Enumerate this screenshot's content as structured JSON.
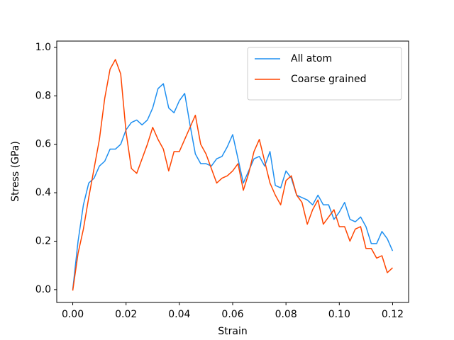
{
  "chart_data": {
    "type": "line",
    "x_label": "Strain",
    "y_label": "Stress (GPa)",
    "x": [
      0.0,
      0.002,
      0.004,
      0.006,
      0.008,
      0.01,
      0.012,
      0.014,
      0.016,
      0.018,
      0.02,
      0.022,
      0.024,
      0.026,
      0.028,
      0.03,
      0.032,
      0.034,
      0.036,
      0.038,
      0.04,
      0.042,
      0.044,
      0.046,
      0.048,
      0.05,
      0.052,
      0.054,
      0.056,
      0.058,
      0.06,
      0.062,
      0.064,
      0.066,
      0.068,
      0.07,
      0.072,
      0.074,
      0.076,
      0.078,
      0.08,
      0.082,
      0.084,
      0.086,
      0.088,
      0.09,
      0.092,
      0.094,
      0.096,
      0.098,
      0.1,
      0.102,
      0.104,
      0.106,
      0.108,
      0.11,
      0.112,
      0.114,
      0.116,
      0.118,
      0.12
    ],
    "series": [
      {
        "name": "All atom",
        "color": "#1e8ff0",
        "values": [
          0.0,
          0.2,
          0.35,
          0.44,
          0.46,
          0.51,
          0.53,
          0.58,
          0.58,
          0.6,
          0.66,
          0.69,
          0.7,
          0.68,
          0.7,
          0.75,
          0.83,
          0.85,
          0.75,
          0.73,
          0.78,
          0.81,
          0.68,
          0.56,
          0.52,
          0.52,
          0.51,
          0.54,
          0.55,
          0.59,
          0.64,
          0.54,
          0.44,
          0.49,
          0.54,
          0.55,
          0.51,
          0.57,
          0.43,
          0.42,
          0.49,
          0.46,
          0.39,
          0.38,
          0.37,
          0.35,
          0.39,
          0.35,
          0.35,
          0.29,
          0.32,
          0.36,
          0.29,
          0.28,
          0.3,
          0.26,
          0.19,
          0.19,
          0.24,
          0.21,
          0.16
        ]
      },
      {
        "name": "Coarse grained",
        "color": "#ff4500",
        "values": [
          -0.004,
          0.15,
          0.25,
          0.38,
          0.5,
          0.62,
          0.79,
          0.91,
          0.95,
          0.89,
          0.65,
          0.5,
          0.48,
          0.54,
          0.6,
          0.67,
          0.62,
          0.58,
          0.49,
          0.57,
          0.57,
          0.62,
          0.67,
          0.72,
          0.6,
          0.56,
          0.5,
          0.44,
          0.46,
          0.47,
          0.49,
          0.52,
          0.41,
          0.48,
          0.57,
          0.62,
          0.53,
          0.44,
          0.39,
          0.35,
          0.45,
          0.47,
          0.39,
          0.36,
          0.27,
          0.33,
          0.37,
          0.27,
          0.3,
          0.33,
          0.26,
          0.26,
          0.2,
          0.25,
          0.26,
          0.17,
          0.17,
          0.13,
          0.14,
          0.07,
          0.09
        ]
      }
    ],
    "xlim": [
      -0.006,
      0.126
    ],
    "ylim": [
      -0.053,
      1.026
    ],
    "xticks": [
      {
        "value": 0.0,
        "label": "0.00"
      },
      {
        "value": 0.02,
        "label": "0.02"
      },
      {
        "value": 0.04,
        "label": "0.04"
      },
      {
        "value": 0.06,
        "label": "0.06"
      },
      {
        "value": 0.08,
        "label": "0.08"
      },
      {
        "value": 0.1,
        "label": "0.10"
      },
      {
        "value": 0.12,
        "label": "0.12"
      }
    ],
    "yticks": [
      {
        "value": 0.0,
        "label": "0.0"
      },
      {
        "value": 0.2,
        "label": "0.2"
      },
      {
        "value": 0.4,
        "label": "0.4"
      },
      {
        "value": 0.6,
        "label": "0.6"
      },
      {
        "value": 0.8,
        "label": "0.8"
      },
      {
        "value": 1.0,
        "label": "1.0"
      }
    ],
    "legend": "upper right",
    "grid": false
  }
}
